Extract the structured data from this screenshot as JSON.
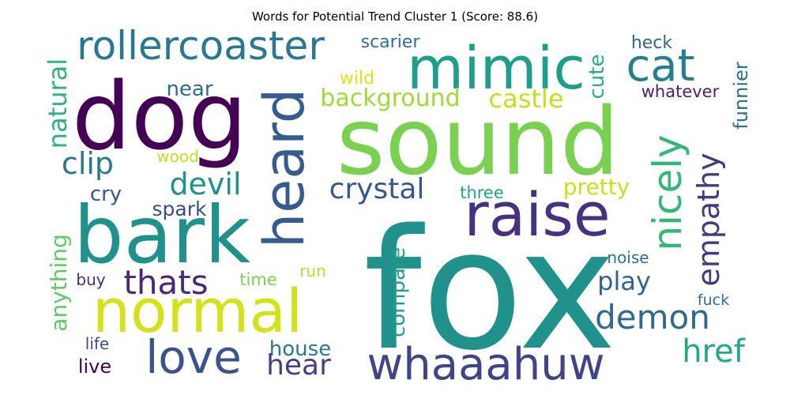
{
  "title": "Words for Potential Trend Cluster 1 (Score: 88.6)",
  "words": [
    {
      "text": "fox",
      "color": "#21918c"
    },
    {
      "text": "sound",
      "color": "#7ad151"
    },
    {
      "text": "dog",
      "color": "#440154"
    },
    {
      "text": "bark",
      "color": "#21918c"
    },
    {
      "text": "mimic",
      "color": "#1f9e89"
    },
    {
      "text": "normal",
      "color": "#d2e21b"
    },
    {
      "text": "raise",
      "color": "#46327e"
    },
    {
      "text": "heard",
      "color": "#365c8d"
    },
    {
      "text": "love",
      "color": "#3b528b"
    },
    {
      "text": "whaaahuw",
      "color": "#414487"
    },
    {
      "text": "cat",
      "color": "#277f8e"
    },
    {
      "text": "rollercoaster",
      "color": "#2a788e"
    },
    {
      "text": "nicely",
      "color": "#35b779"
    },
    {
      "text": "thats",
      "color": "#482878"
    },
    {
      "text": "empathy",
      "color": "#443983"
    },
    {
      "text": "demon",
      "color": "#31688e"
    },
    {
      "text": "href",
      "color": "#22a884"
    },
    {
      "text": "hear",
      "color": "#433e85"
    },
    {
      "text": "crystal",
      "color": "#39568c"
    },
    {
      "text": "play",
      "color": "#33638d"
    },
    {
      "text": "clip",
      "color": "#2a788e"
    },
    {
      "text": "devil",
      "color": "#21918c"
    },
    {
      "text": "background",
      "color": "#a0da39"
    },
    {
      "text": "castle",
      "color": "#c2df23"
    },
    {
      "text": "natural",
      "color": "#2db27d"
    },
    {
      "text": "anything",
      "color": "#5ec962"
    },
    {
      "text": "compare",
      "color": "#1f9e89"
    },
    {
      "text": "cute",
      "color": "#26ad81"
    },
    {
      "text": "funnier",
      "color": "#2d708e"
    },
    {
      "text": "pretty",
      "color": "#c8e020"
    },
    {
      "text": "house",
      "color": "#2a788e"
    },
    {
      "text": "near",
      "color": "#306a8e"
    },
    {
      "text": "spark",
      "color": "#3e4a89"
    },
    {
      "text": "cry",
      "color": "#3b528b"
    },
    {
      "text": "live",
      "color": "#440154"
    },
    {
      "text": "scarier",
      "color": "#2c718e"
    },
    {
      "text": "wild",
      "color": "#dde318"
    },
    {
      "text": "whatever",
      "color": "#481f70"
    },
    {
      "text": "heck",
      "color": "#31688e"
    },
    {
      "text": "noise",
      "color": "#2c718e"
    },
    {
      "text": "buy",
      "color": "#472d7b"
    },
    {
      "text": "time",
      "color": "#7ad151"
    },
    {
      "text": "run",
      "color": "#b5de2b"
    },
    {
      "text": "wood",
      "color": "#c0df25"
    },
    {
      "text": "three",
      "color": "#20a386"
    },
    {
      "text": "fuck",
      "color": "#2e6f8e"
    },
    {
      "text": "life",
      "color": "#3e4c8a"
    }
  ]
}
